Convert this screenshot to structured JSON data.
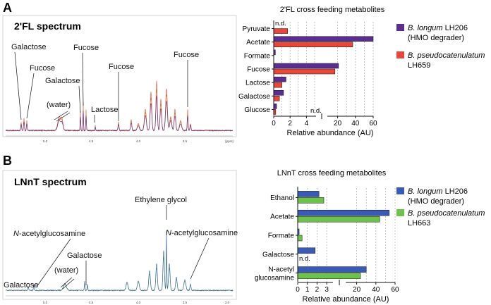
{
  "panels": [
    {
      "letter": "A",
      "spectrum": {
        "title": "2'FL spectrum",
        "axis_ticks": [
          "5.0",
          "4.5",
          "4.0",
          "3.5",
          "[ppm]"
        ],
        "annotations": [
          "Galactose",
          "Fucose",
          "Galactose",
          "Fucose",
          "Fucose",
          "Fucose",
          "(water)",
          "Lactose"
        ]
      },
      "bar": {
        "title": "2'FL cross feeding metabolites",
        "xlabel": "Relative abundance (AU)",
        "categories": [
          "Pyruvate",
          "Acetate",
          "Formate",
          "Fucose",
          "Lactose",
          "Galactose",
          "Glucose"
        ],
        "tick_labels": [
          "0",
          "2",
          "4",
          "20",
          "40",
          "60"
        ],
        "nd_label": "n.d.",
        "legend": [
          {
            "italic": "B. longum",
            "rest": " LH206",
            "line2": "(HMO degrader)",
            "color": "#5b2d8e"
          },
          {
            "italic": "B. pseudocatenulatum",
            "rest": "",
            "line2": "LH659",
            "color": "#e8473b"
          }
        ]
      }
    },
    {
      "letter": "B",
      "spectrum": {
        "title": "LNnT spectrum",
        "axis_ticks": [
          "5.0",
          "4.5",
          "4.0",
          "3.5",
          "3.0"
        ],
        "annotations": [
          "Ethylene glycol",
          "N-acetylglucosamine",
          "N-acetylglucosamine",
          "Galactose",
          "Galactose",
          "(water)"
        ]
      },
      "bar": {
        "title": "LNnT cross feeding metabolites",
        "xlabel": "Relative abundance (AU)",
        "categories": [
          "Ethanol",
          "Acetate",
          "Formate",
          "Galactose",
          "N-acetyl glucosamine"
        ],
        "tick_labels": [
          "0",
          "1",
          "2",
          "3",
          "20",
          "40",
          "60"
        ],
        "nd_label": "n.d.",
        "legend": [
          {
            "italic": "B. longum",
            "rest": " LH206",
            "line2": "(HMO degrader)",
            "color": "#3a5bb5"
          },
          {
            "italic": "B. pseudocatenulatum",
            "rest": "",
            "line2": "LH663",
            "color": "#6cc24a"
          }
        ]
      }
    }
  ],
  "chart_data": [
    {
      "type": "bar",
      "title": "2'FL cross feeding metabolites",
      "xlabel": "Relative abundance (AU)",
      "ylabel": "",
      "orientation": "horizontal",
      "axis": "broken: 0-5 linear, then 10-60",
      "xlim": [
        0,
        60
      ],
      "categories": [
        "Pyruvate",
        "Acetate",
        "Formate",
        "Fucose",
        "Lactose",
        "Galactose",
        "Glucose"
      ],
      "series": [
        {
          "name": "B. longum LH206 (HMO degrader)",
          "values": [
            0,
            60,
            0.2,
            21,
            1.5,
            1.2,
            0.35
          ]
        },
        {
          "name": "B. pseudocatenulatum LH659",
          "values": [
            1.7,
            37,
            0,
            17,
            1.0,
            0.7,
            0.25
          ]
        }
      ],
      "annotations": [
        "n.d."
      ]
    },
    {
      "type": "bar",
      "title": "LNnT cross feeding metabolites",
      "xlabel": "Relative abundance (AU)",
      "ylabel": "",
      "orientation": "horizontal",
      "axis": "broken: 0-3.5 linear, then 10-60",
      "xlim": [
        0,
        60
      ],
      "categories": [
        "Ethanol",
        "Acetate",
        "Formate",
        "Galactose",
        "N-acetyl glucosamine"
      ],
      "series": [
        {
          "name": "B. longum LH206 (HMO degrader)",
          "values": [
            2.2,
            54,
            0.15,
            1.8,
            30
          ]
        },
        {
          "name": "B. pseudocatenulatum LH663",
          "values": [
            2.7,
            44,
            0.45,
            0,
            24
          ]
        }
      ],
      "annotations": [
        "n.d."
      ]
    }
  ]
}
